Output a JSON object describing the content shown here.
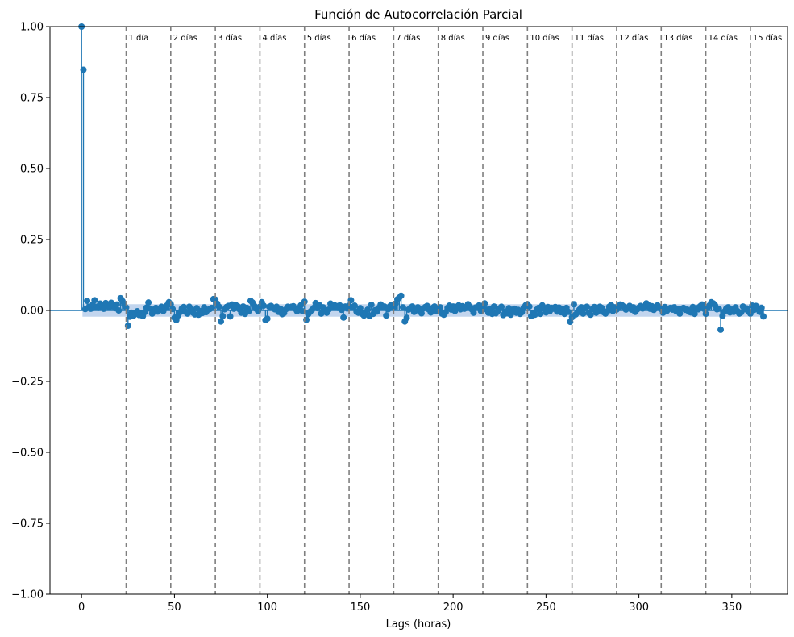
{
  "chart_data": {
    "type": "scatter",
    "title": "Función de Autocorrelación Parcial",
    "xlabel": "Lags (horas)",
    "ylabel": "",
    "xlim": [
      -17,
      380
    ],
    "ylim": [
      -1.0,
      1.0
    ],
    "x_ticks": [
      0,
      50,
      100,
      150,
      200,
      250,
      300,
      350
    ],
    "x_tick_labels": [
      "0",
      "50",
      "100",
      "150",
      "200",
      "250",
      "300",
      "350"
    ],
    "y_ticks": [
      1.0,
      0.75,
      0.5,
      0.25,
      0.0,
      -0.25,
      -0.5,
      -0.75,
      -1.0
    ],
    "y_tick_labels": [
      "1.00",
      "0.75",
      "0.50",
      "0.25",
      "0.00",
      "−0.25",
      "−0.50",
      "−0.75",
      "−1.00"
    ],
    "grid": false,
    "confidence_band": 0.022,
    "zero_line": 0,
    "colors": {
      "series": "#1f77b4",
      "band": "#aec7e8",
      "vline": "#7f7f7f"
    },
    "day_lines": {
      "x": [
        24,
        48,
        72,
        96,
        120,
        144,
        168,
        192,
        216,
        240,
        264,
        288,
        312,
        336,
        360
      ],
      "labels": [
        "1 día",
        "2 días",
        "3 días",
        "4 días",
        "5 días",
        "6 días",
        "7 días",
        "8 días",
        "9 días",
        "10 días",
        "11 días",
        "12 días",
        "13 días",
        "14 días",
        "15 días"
      ]
    },
    "series": [
      {
        "values": [
          1.0,
          0.848,
          0.005,
          0.034,
          0.012,
          0.006,
          0.02,
          0.036,
          0.013,
          0.009,
          0.024,
          0.018,
          0.006,
          0.026,
          0.019,
          0.011,
          0.027,
          0.015,
          0.008,
          0.021,
          0.0,
          0.043,
          0.033,
          0.02,
          0.01,
          -0.054,
          -0.022,
          -0.008,
          -0.018,
          -0.011,
          -0.003,
          -0.016,
          -0.009,
          -0.02,
          -0.006,
          0.01,
          0.028,
          0.006,
          -0.011,
          0.0,
          0.009,
          -0.004,
          0.006,
          0.013,
          -0.002,
          0.009,
          0.018,
          0.029,
          0.022,
          0.005,
          -0.026,
          -0.034,
          -0.018,
          -0.006,
          0.007,
          0.012,
          -0.005,
          -0.011,
          0.013,
          0.004,
          -0.008,
          -0.014,
          0.008,
          -0.015,
          -0.002,
          -0.009,
          0.011,
          -0.006,
          0.002,
          0.005,
          0.009,
          0.04,
          0.038,
          0.024,
          0.013,
          -0.039,
          -0.02,
          0.004,
          0.012,
          0.016,
          -0.021,
          0.021,
          0.006,
          0.019,
          0.015,
          0.004,
          -0.008,
          0.014,
          -0.012,
          0.009,
          -0.003,
          0.034,
          0.028,
          0.016,
          0.006,
          -0.002,
          0.013,
          0.029,
          0.017,
          -0.034,
          -0.029,
          0.013,
          0.016,
          0.009,
          0.004,
          0.013,
          -0.005,
          0.006,
          -0.013,
          -0.009,
          0.004,
          0.013,
          0.01,
          0.013,
          0.015,
          0.006,
          -0.003,
          0.008,
          0.018,
          -0.003,
          0.031,
          -0.033,
          -0.013,
          -0.005,
          0.002,
          0.009,
          0.026,
          0.008,
          0.019,
          -0.011,
          0.011,
          -0.004,
          -0.008,
          0.003,
          0.024,
          0.011,
          0.019,
          0.016,
          0.009,
          0.018,
          0.002,
          -0.025,
          0.014,
          0.007,
          0.017,
          0.036,
          0.011,
          0.017,
          -0.004,
          -0.008,
          0.008,
          -0.012,
          -0.018,
          -0.009,
          0.003,
          -0.02,
          0.02,
          -0.012,
          0.001,
          -0.004,
          0.009,
          0.021,
          0.012,
          0.014,
          -0.018,
          0.004,
          0.015,
          0.02,
          0.009,
          0.024,
          0.039,
          0.045,
          0.052,
          0.011,
          -0.039,
          -0.026,
          0.003,
          0.009,
          0.014,
          -0.005,
          0.006,
          0.011,
          -0.003,
          -0.01,
          0.007,
          0.012,
          0.016,
          0.003,
          -0.007,
          0.009,
          0.014,
          -0.002,
          0.006,
          0.011,
          -0.011,
          -0.015,
          -0.006,
          0.009,
          0.017,
          0.003,
          0.014,
          -0.002,
          0.013,
          0.018,
          0.004,
          0.015,
          0.006,
          0.01,
          0.022,
          0.014,
          0.004,
          -0.008,
          0.01,
          0.013,
          0.018,
          -0.002,
          0.011,
          0.025,
          0.003,
          -0.008,
          0.006,
          -0.012,
          0.014,
          -0.01,
          -0.003,
          0.007,
          0.013,
          -0.016,
          -0.004,
          -0.01,
          0.008,
          -0.015,
          -0.002,
          0.006,
          -0.008,
          0.002,
          -0.012,
          -0.006,
          0.01,
          0.018,
          0.022,
          0.014,
          -0.02,
          -0.01,
          -0.015,
          0.003,
          0.009,
          -0.012,
          0.018,
          0.007,
          -0.007,
          0.012,
          -0.003,
          0.009,
          0.006,
          0.012,
          -0.004,
          0.01,
          -0.006,
          0.006,
          -0.012,
          0.009,
          -0.005,
          -0.04,
          -0.024,
          0.022,
          -0.014,
          -0.007,
          0.003,
          0.011,
          -0.011,
          0.008,
          0.013,
          -0.009,
          -0.015,
          0.005,
          0.012,
          -0.008,
          -0.003,
          0.013,
          0.009,
          -0.006,
          -0.011,
          -0.003,
          0.013,
          0.019,
          -0.002,
          0.011,
          0.003,
          0.009,
          0.021,
          0.018,
          0.013,
          0.003,
          0.008,
          0.016,
          0.003,
          0.011,
          -0.005,
          0.003,
          0.01,
          0.016,
          0.007,
          0.012,
          0.025,
          0.019,
          0.006,
          0.015,
          0.002,
          0.008,
          0.018,
          0.009,
          0.005,
          -0.008,
          0.012,
          -0.002,
          0.006,
          0.009,
          0.003,
          0.011,
          -0.002,
          0.004,
          -0.011,
          0.006,
          0.009,
          0.002,
          0.003,
          -0.005,
          -0.007,
          0.012,
          -0.012,
          0.008,
          0.004,
          0.015,
          0.021,
          0.006,
          -0.012,
          0.009,
          0.018,
          0.029,
          0.025,
          0.018,
          0.004,
          0.006,
          -0.068,
          -0.019,
          -0.004,
          0.006,
          0.011,
          -0.007,
          0.003,
          -0.005,
          0.011,
          -0.002,
          -0.011,
          -0.007,
          0.014,
          0.004,
          0.007,
          -0.004,
          -0.011,
          0.017,
          0.002,
          0.016,
          0.006,
          -0.005,
          0.009,
          -0.021
        ]
      }
    ]
  }
}
